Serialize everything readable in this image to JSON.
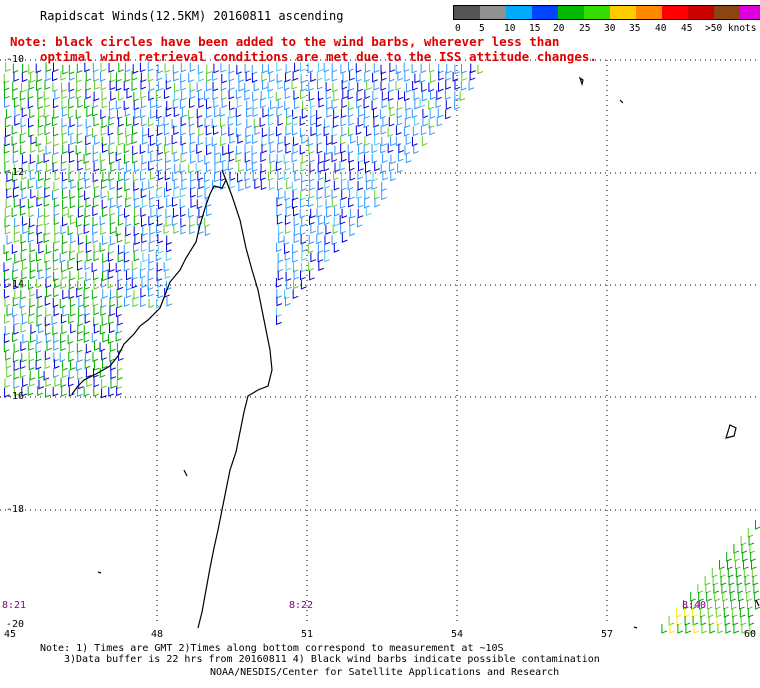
{
  "header": {
    "title": "Rapidscat Winds(12.5KM) 20160811 ascending",
    "note_line1": "Note: black circles have been added to the wind barbs, wherever less than",
    "note_line2": "optimal wind retrieval conditions are met due to the ISS attitude changes."
  },
  "legend": {
    "colors": [
      "#555555",
      "#909090",
      "#00aaff",
      "#0044ff",
      "#00bb00",
      "#33dd00",
      "#ffcc00",
      "#ff8800",
      "#ff0000",
      "#cc0000",
      "#8b4513",
      "#dd00dd",
      "#6a0dad"
    ],
    "labels": [
      "0",
      "5",
      "10",
      "15",
      "20",
      "25",
      "30",
      "35",
      "40",
      "45",
      ">50 knots"
    ]
  },
  "map": {
    "lat_labels": [
      "-10",
      "-12",
      "-14",
      "-16",
      "-18",
      "-20"
    ],
    "lon_labels": [
      "45",
      "48",
      "51",
      "54",
      "57",
      "60"
    ],
    "time_labels": [
      "8:21",
      "8:22",
      "8:40"
    ],
    "wind_colors": [
      "#0000dd",
      "#3399ff",
      "#55ccee",
      "#00aa00",
      "#66cc33",
      "#ffee00"
    ]
  },
  "footer": {
    "line1": "Note: 1) Times are GMT 2)Times along bottom correspond to measurement at ~10S",
    "line2": "3)Data buffer is 22 hrs from 20160811 4) Black wind barbs indicate possible contamination",
    "line3": "NOAA/NESDIS/Center for Satellite Applications and Research"
  }
}
